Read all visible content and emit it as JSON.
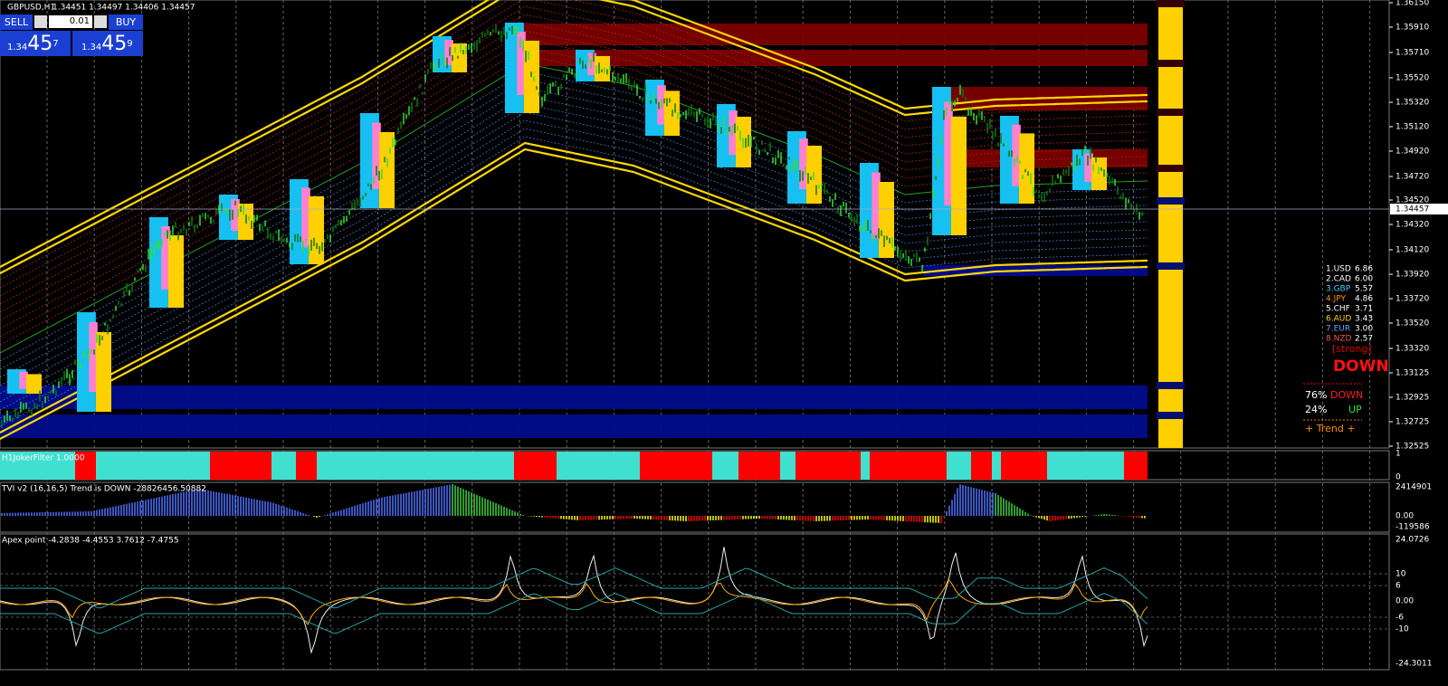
{
  "header": {
    "symbol": "GBPUSD,H1",
    "ohlc": "1.34451 1.34497 1.34406 1.34457"
  },
  "trade_panel": {
    "sell": "SELL",
    "lot": "0.01",
    "buy": "BUY",
    "sell_big": "1.34",
    "sell_pips": "45",
    "sell_frac": "7",
    "buy_big": "1.34",
    "buy_pips": "45",
    "buy_frac": "9"
  },
  "price_axis": [
    "1.36150",
    "1.35910",
    "1.35710",
    "1.35520",
    "1.35320",
    "1.35120",
    "1.34920",
    "1.34720",
    "1.34520",
    "1.34320",
    "1.34120",
    "1.33920",
    "1.33720",
    "1.33520",
    "1.33320",
    "1.33125",
    "1.32925",
    "1.32725",
    "1.32525"
  ],
  "current_price": "1.34457",
  "strength": [
    [
      "1.USD",
      "6.86"
    ],
    [
      "2.CAD",
      "6.00"
    ],
    [
      "3.GBP",
      "5.57"
    ],
    [
      "4.JPY",
      "4.86"
    ],
    [
      "5.CHF",
      "3.71"
    ],
    [
      "6.AUD",
      "3.43"
    ],
    [
      "7.EUR",
      "3.00"
    ],
    [
      "8.NZD",
      "2.57"
    ]
  ],
  "signal": {
    "strength": "[strong]",
    "direction": "DOWN",
    "down_pct": "76%",
    "down": "DOWN",
    "up_pct": "24%",
    "up": "UP",
    "trend": "+   Trend   +"
  },
  "panels": {
    "filter": {
      "label": "H1JokerFilter 1.0000",
      "axis": [
        "1",
        "0"
      ]
    },
    "tvi": {
      "label": "TVI v2 (16,16,5) Trend is DOWN -28826456.50882",
      "axis": [
        "2414901",
        "0.00",
        "-119586"
      ]
    },
    "apex": {
      "label": "Apex point -4.2838 -4.4553 3.7612 -7.4755",
      "axis": [
        "24.0726",
        "10",
        "6",
        "0.00",
        "-6",
        "-10",
        "-24.3011"
      ]
    }
  }
}
